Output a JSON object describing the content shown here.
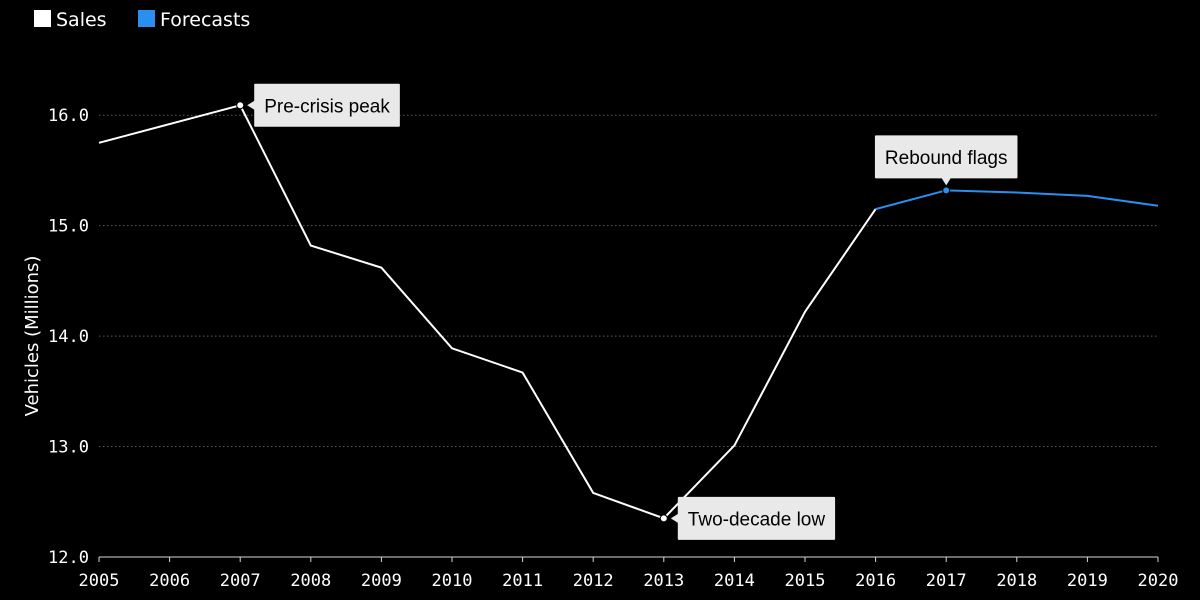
{
  "chart_data": {
    "type": "line",
    "title": "",
    "xlabel": "",
    "ylabel": "Vehicles (Millions)",
    "x": [
      "2005",
      "2006",
      "2007",
      "2008",
      "2009",
      "2010",
      "2011",
      "2012",
      "2013",
      "2014",
      "2015",
      "2016",
      "2017",
      "2018",
      "2019",
      "2020"
    ],
    "xlim": [
      2005,
      2020
    ],
    "ylim": [
      12.0,
      16.5
    ],
    "y_ticks": [
      "12.0",
      "13.0",
      "14.0",
      "15.0",
      "16.0"
    ],
    "grid": true,
    "legend_position": "top-left",
    "series": [
      {
        "name": "Sales",
        "color": "#ffffff",
        "points": [
          {
            "x": 2005,
            "y": 15.75
          },
          {
            "x": 2006,
            "y": 15.92
          },
          {
            "x": 2007,
            "y": 16.09
          },
          {
            "x": 2008,
            "y": 14.82
          },
          {
            "x": 2009,
            "y": 14.62
          },
          {
            "x": 2010,
            "y": 13.89
          },
          {
            "x": 2011,
            "y": 13.67
          },
          {
            "x": 2012,
            "y": 12.58
          },
          {
            "x": 2013,
            "y": 12.35
          },
          {
            "x": 2014,
            "y": 13.01
          },
          {
            "x": 2015,
            "y": 14.22
          },
          {
            "x": 2016,
            "y": 15.15
          }
        ]
      },
      {
        "name": "Forecasts",
        "color": "#2b8ff0",
        "points": [
          {
            "x": 2016,
            "y": 15.15
          },
          {
            "x": 2017,
            "y": 15.32
          },
          {
            "x": 2018,
            "y": 15.3
          },
          {
            "x": 2019,
            "y": 15.27
          },
          {
            "x": 2020,
            "y": 15.18
          }
        ]
      }
    ],
    "annotations": [
      {
        "text": "Pre-crisis peak",
        "x": 2007,
        "y": 16.09,
        "placement": "right"
      },
      {
        "text": "Two-decade low",
        "x": 2013,
        "y": 12.35,
        "placement": "right"
      },
      {
        "text": "Rebound flags",
        "x": 2017,
        "y": 15.32,
        "placement": "above"
      }
    ]
  }
}
